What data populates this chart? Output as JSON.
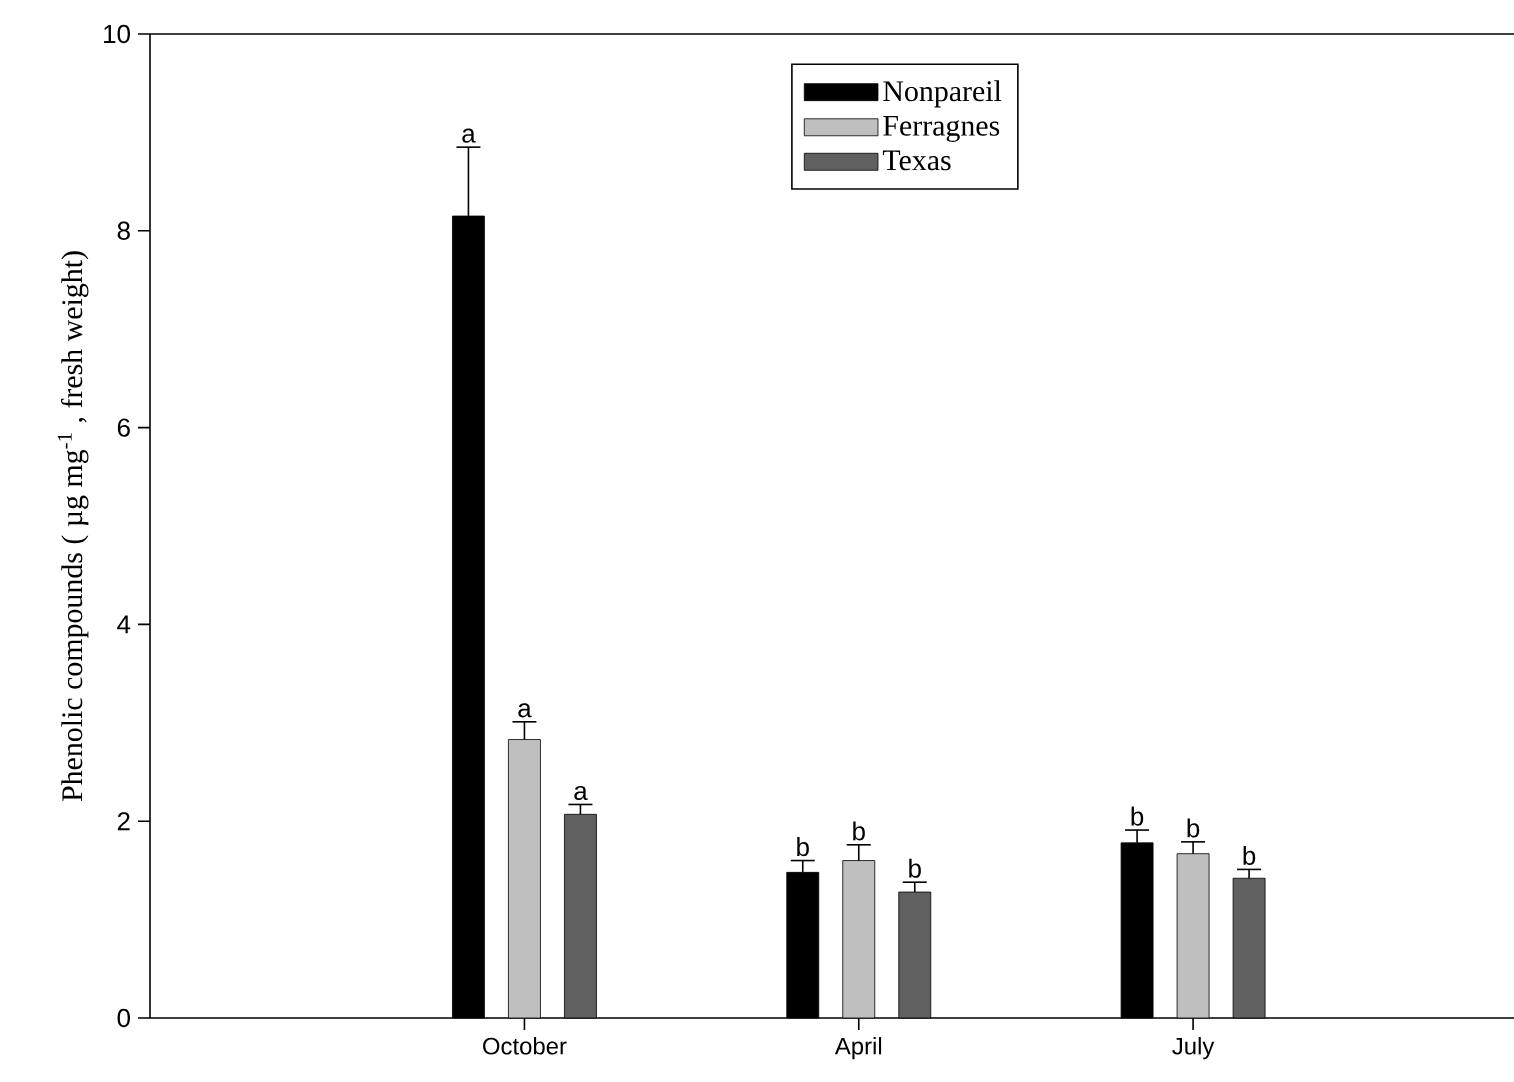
{
  "chart_data": {
    "type": "bar",
    "ylabel": "Phenolic compounds ( µg mg$^{-1}$ , fresh weight)",
    "categories": [
      "October",
      "April",
      "July"
    ],
    "series": [
      {
        "name": "Nonpareil",
        "color": "#000000",
        "values": [
          8.15,
          1.48,
          1.78
        ],
        "errors": [
          0.7,
          0.12,
          0.13
        ]
      },
      {
        "name": "Ferragnes",
        "color": "#bfbfbf",
        "values": [
          2.83,
          1.6,
          1.67
        ],
        "errors": [
          0.18,
          0.16,
          0.12
        ]
      },
      {
        "name": "Texas",
        "color": "#606060",
        "values": [
          2.07,
          1.28,
          1.42
        ],
        "errors": [
          0.1,
          0.1,
          0.09
        ]
      }
    ],
    "ylim": [
      0,
      10
    ],
    "yticks": [
      0,
      2,
      4,
      6,
      8,
      10
    ],
    "grid": false,
    "legend": "top",
    "annotations": [
      "a",
      "a",
      "a",
      "b",
      "b",
      "b",
      "b",
      "b",
      "b"
    ]
  }
}
